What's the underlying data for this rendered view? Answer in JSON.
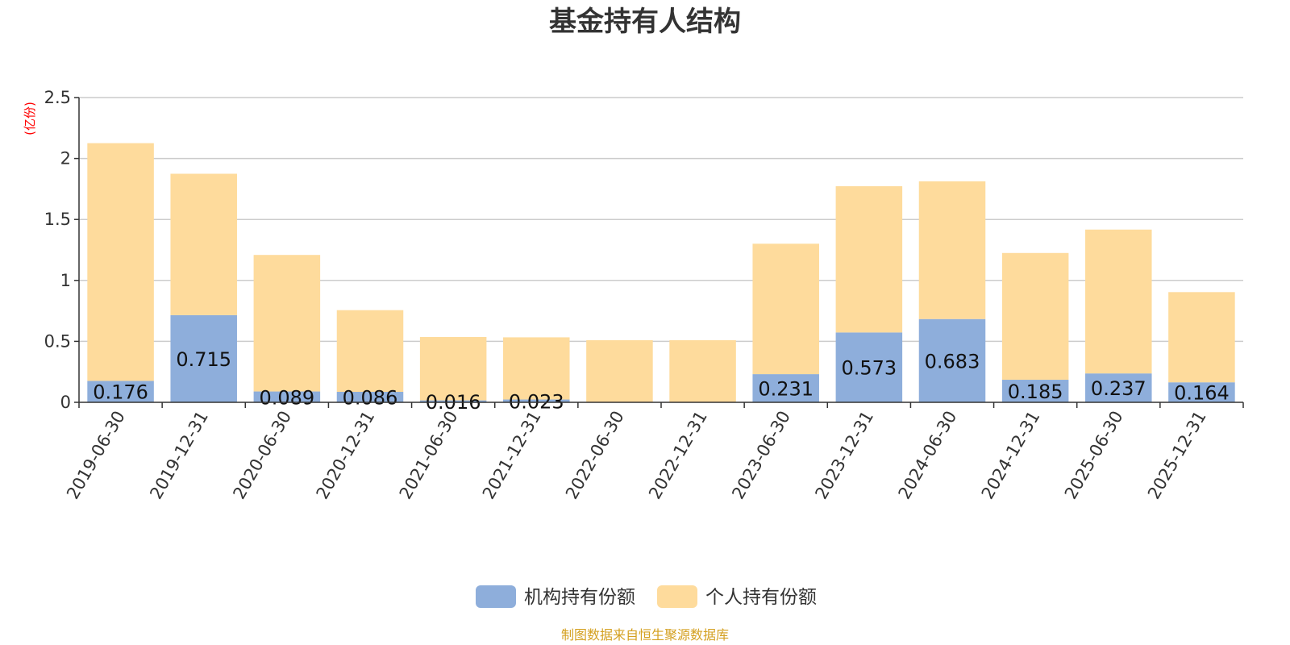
{
  "chart_data": {
    "type": "bar",
    "stacked": true,
    "title": "基金持有人结构",
    "unit_label": "(亿份)",
    "categories": [
      "2019-06-30",
      "2019-12-31",
      "2020-06-30",
      "2020-12-31",
      "2021-06-30",
      "2021-12-31",
      "2022-06-30",
      "2022-12-31",
      "2023-06-30",
      "2023-12-31",
      "2024-06-30",
      "2024-12-31",
      "2025-06-30",
      "2025-12-31"
    ],
    "series": [
      {
        "name": "机构持有份额",
        "color": "#8eaedb",
        "values": [
          0.176,
          0.715,
          0.089,
          0.086,
          0.016,
          0.023,
          0,
          0,
          0.231,
          0.573,
          0.683,
          0.185,
          0.237,
          0.164
        ],
        "labels": [
          "0.176",
          "0.715",
          "0.089",
          "0.086",
          "0.016",
          "0.023",
          "",
          "",
          "0.231",
          "0.573",
          "0.683",
          "0.185",
          "0.237",
          "0.164"
        ]
      },
      {
        "name": "个人持有份额",
        "color": "#fedb9c",
        "values": [
          1.95,
          1.16,
          1.12,
          0.67,
          0.52,
          0.51,
          0.51,
          0.51,
          1.07,
          1.2,
          1.13,
          1.04,
          1.18,
          0.74
        ]
      }
    ],
    "ylim": [
      0,
      2.5
    ],
    "yticks": [
      "0",
      "0.5",
      "1",
      "1.5",
      "2",
      "2.5"
    ],
    "grid": true,
    "legend_position": "bottom-center"
  },
  "source": "制图数据来自恒生聚源数据库"
}
